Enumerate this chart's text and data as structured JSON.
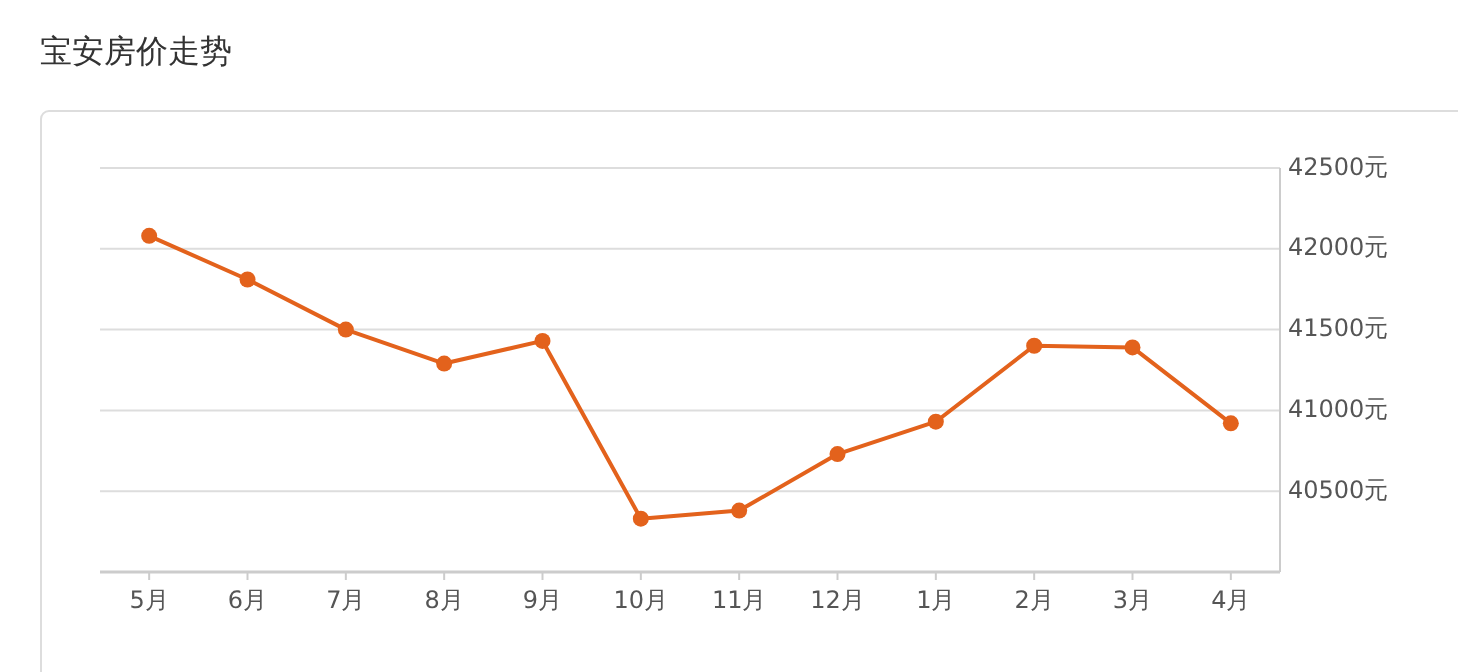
{
  "chart_data": {
    "type": "line",
    "title": "宝安房价走势",
    "categories": [
      "5月",
      "6月",
      "7月",
      "8月",
      "9月",
      "10月",
      "11月",
      "12月",
      "1月",
      "2月",
      "3月",
      "4月"
    ],
    "series": [
      {
        "color": "#e3621c",
        "values": [
          42080,
          41810,
          41500,
          41290,
          41430,
          40330,
          40380,
          40730,
          40930,
          41400,
          41390,
          40920
        ]
      }
    ],
    "ylim": [
      40000,
      42500
    ],
    "yticks": [
      {
        "value": 40500,
        "label": "40500元"
      },
      {
        "value": 41000,
        "label": "41000元"
      },
      {
        "value": 41500,
        "label": "41500元"
      },
      {
        "value": 42000,
        "label": "42000元"
      },
      {
        "value": 42500,
        "label": "42500元"
      }
    ],
    "grid": "y",
    "marker": "circle",
    "line_style": "solid"
  }
}
